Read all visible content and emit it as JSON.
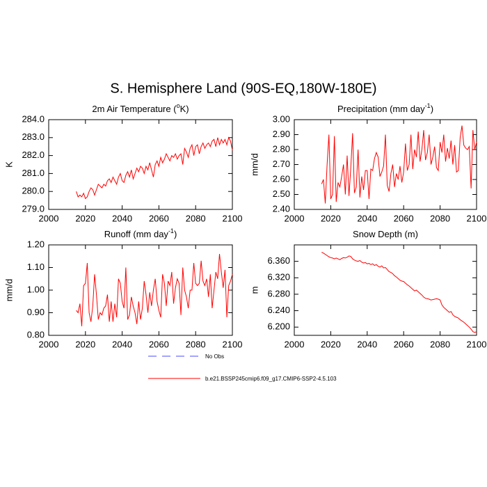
{
  "title": "S. Hemisphere Land (90S-EQ,180W-180E)",
  "legend": [
    {
      "name": "No Obs",
      "color": "#4a4aff",
      "dashed": true
    },
    {
      "name": "b.e21.BSSP245cmip6.f09_g17.CMIP6-SSP2-4.5.103",
      "color": "#ff0000",
      "dashed": false
    }
  ],
  "chart_data": [
    {
      "type": "line",
      "title": "2m Air Temperature (",
      "title_sup": "o",
      "title_end": "K)",
      "ylabel": "K",
      "color": "#ff0000",
      "xlim": [
        2000,
        2100
      ],
      "xticks": [
        2000,
        2020,
        2040,
        2060,
        2080,
        2100
      ],
      "ylim": [
        279,
        284
      ],
      "yticks": [
        {
          "value": 279,
          "label": "279.0"
        },
        {
          "value": 280,
          "label": "280.0"
        },
        {
          "value": 281,
          "label": "281.0"
        },
        {
          "value": 282,
          "label": "282.0"
        },
        {
          "value": 283,
          "label": "283.0"
        },
        {
          "value": 284,
          "label": "284.0"
        }
      ],
      "x": [
        2015,
        2016,
        2017,
        2018,
        2019,
        2020,
        2021,
        2022,
        2023,
        2024,
        2025,
        2026,
        2027,
        2028,
        2029,
        2030,
        2031,
        2032,
        2033,
        2034,
        2035,
        2036,
        2037,
        2038,
        2039,
        2040,
        2041,
        2042,
        2043,
        2044,
        2045,
        2046,
        2047,
        2048,
        2049,
        2050,
        2051,
        2052,
        2053,
        2054,
        2055,
        2056,
        2057,
        2058,
        2059,
        2060,
        2061,
        2062,
        2063,
        2064,
        2065,
        2066,
        2067,
        2068,
        2069,
        2070,
        2071,
        2072,
        2073,
        2074,
        2075,
        2076,
        2077,
        2078,
        2079,
        2080,
        2081,
        2082,
        2083,
        2084,
        2085,
        2086,
        2087,
        2088,
        2089,
        2090,
        2091,
        2092,
        2093,
        2094,
        2095,
        2096,
        2097,
        2098,
        2099,
        2100
      ],
      "values": [
        280.0,
        279.7,
        279.8,
        279.7,
        279.9,
        279.6,
        279.7,
        280.0,
        280.2,
        280.1,
        279.8,
        280.1,
        280.4,
        280.3,
        280.2,
        280.4,
        280.3,
        280.6,
        280.7,
        280.5,
        280.8,
        280.6,
        280.4,
        280.8,
        281.0,
        280.6,
        280.5,
        280.9,
        281.1,
        280.8,
        281.2,
        280.7,
        281.0,
        281.3,
        281.1,
        281.4,
        281.3,
        281.0,
        281.4,
        281.2,
        281.6,
        281.2,
        280.8,
        281.5,
        281.7,
        281.4,
        281.9,
        281.6,
        281.8,
        282.1,
        281.9,
        281.7,
        282.0,
        281.9,
        282.1,
        281.8,
        282.0,
        282.1,
        281.5,
        282.4,
        282.2,
        281.9,
        282.4,
        282.6,
        282.0,
        282.5,
        282.6,
        282.1,
        282.5,
        282.7,
        282.4,
        282.6,
        282.7,
        282.5,
        282.8,
        282.9,
        282.5,
        283.0,
        282.6,
        282.9,
        282.7,
        282.9,
        282.6,
        283.0,
        282.8,
        282.3
      ]
    },
    {
      "type": "line",
      "title": "Precipitation (mm day",
      "title_sup": "-1",
      "title_end": ")",
      "ylabel": "mm/d",
      "color": "#ff0000",
      "xlim": [
        2000,
        2100
      ],
      "xticks": [
        2000,
        2020,
        2040,
        2060,
        2080,
        2100
      ],
      "ylim": [
        2.4,
        3.0
      ],
      "yticks": [
        {
          "value": 2.4,
          "label": "2.40"
        },
        {
          "value": 2.5,
          "label": "2.50"
        },
        {
          "value": 2.6,
          "label": "2.60"
        },
        {
          "value": 2.7,
          "label": "2.70"
        },
        {
          "value": 2.8,
          "label": "2.80"
        },
        {
          "value": 2.9,
          "label": "2.90"
        },
        {
          "value": 3.0,
          "label": "3.00"
        }
      ],
      "x": [
        2015,
        2016,
        2017,
        2018,
        2019,
        2020,
        2021,
        2022,
        2023,
        2024,
        2025,
        2026,
        2027,
        2028,
        2029,
        2030,
        2031,
        2032,
        2033,
        2034,
        2035,
        2036,
        2037,
        2038,
        2039,
        2040,
        2041,
        2042,
        2043,
        2044,
        2045,
        2046,
        2047,
        2048,
        2049,
        2050,
        2051,
        2052,
        2053,
        2054,
        2055,
        2056,
        2057,
        2058,
        2059,
        2060,
        2061,
        2062,
        2063,
        2064,
        2065,
        2066,
        2067,
        2068,
        2069,
        2070,
        2071,
        2072,
        2073,
        2074,
        2075,
        2076,
        2077,
        2078,
        2079,
        2080,
        2081,
        2082,
        2083,
        2084,
        2085,
        2086,
        2087,
        2088,
        2089,
        2090,
        2091,
        2092,
        2093,
        2094,
        2095,
        2096,
        2097,
        2098,
        2099,
        2100
      ],
      "values": [
        2.57,
        2.6,
        2.44,
        2.7,
        2.9,
        2.47,
        2.5,
        2.89,
        2.45,
        2.58,
        2.55,
        2.62,
        2.7,
        2.5,
        2.76,
        2.49,
        2.68,
        2.91,
        2.51,
        2.55,
        2.8,
        2.48,
        2.62,
        2.53,
        2.66,
        2.66,
        2.47,
        2.67,
        2.66,
        2.74,
        2.78,
        2.75,
        2.62,
        2.65,
        2.69,
        2.9,
        2.56,
        2.52,
        2.64,
        2.7,
        2.55,
        2.64,
        2.6,
        2.69,
        2.58,
        2.65,
        2.84,
        2.66,
        2.7,
        2.9,
        2.67,
        2.8,
        2.75,
        2.92,
        2.72,
        2.8,
        2.93,
        2.73,
        2.78,
        2.9,
        2.7,
        2.75,
        2.82,
        2.68,
        2.66,
        2.85,
        2.78,
        2.9,
        2.72,
        2.81,
        2.74,
        2.86,
        2.7,
        2.83,
        2.65,
        2.66,
        2.88,
        2.96,
        2.83,
        2.81,
        2.8,
        2.82,
        2.54,
        2.93,
        2.8,
        2.85
      ]
    },
    {
      "type": "line",
      "title": "Runoff (mm day",
      "title_sup": "-1",
      "title_end": ")",
      "ylabel": "mm/d",
      "color": "#ff0000",
      "xlim": [
        2000,
        2100
      ],
      "xticks": [
        2000,
        2020,
        2040,
        2060,
        2080,
        2100
      ],
      "ylim": [
        0.8,
        1.2
      ],
      "yticks": [
        {
          "value": 0.8,
          "label": "0.80"
        },
        {
          "value": 0.9,
          "label": "0.90"
        },
        {
          "value": 1.0,
          "label": "1.00"
        },
        {
          "value": 1.1,
          "label": "1.10"
        },
        {
          "value": 1.2,
          "label": "1.20"
        }
      ],
      "x": [
        2015,
        2016,
        2017,
        2018,
        2019,
        2020,
        2021,
        2022,
        2023,
        2024,
        2025,
        2026,
        2027,
        2028,
        2029,
        2030,
        2031,
        2032,
        2033,
        2034,
        2035,
        2036,
        2037,
        2038,
        2039,
        2040,
        2041,
        2042,
        2043,
        2044,
        2045,
        2046,
        2047,
        2048,
        2049,
        2050,
        2051,
        2052,
        2053,
        2054,
        2055,
        2056,
        2057,
        2058,
        2059,
        2060,
        2061,
        2062,
        2063,
        2064,
        2065,
        2066,
        2067,
        2068,
        2069,
        2070,
        2071,
        2072,
        2073,
        2074,
        2075,
        2076,
        2077,
        2078,
        2079,
        2080,
        2081,
        2082,
        2083,
        2084,
        2085,
        2086,
        2087,
        2088,
        2089,
        2090,
        2091,
        2092,
        2093,
        2094,
        2095,
        2096,
        2097,
        2098,
        2099,
        2100
      ],
      "values": [
        0.91,
        0.9,
        0.94,
        0.84,
        1.02,
        1.03,
        1.12,
        0.9,
        0.86,
        0.93,
        1.07,
        0.98,
        0.87,
        0.9,
        0.89,
        0.92,
        0.93,
        0.98,
        0.86,
        0.95,
        0.86,
        0.94,
        0.88,
        1.05,
        1.03,
        0.95,
        0.92,
        1.1,
        0.87,
        0.89,
        0.97,
        0.93,
        0.9,
        0.85,
        0.95,
        0.87,
        0.92,
        1.04,
        0.98,
        0.9,
        0.99,
        0.93,
        1.0,
        1.05,
        0.95,
        0.91,
        0.88,
        1.07,
        1.03,
        0.93,
        1.04,
        1.02,
        1.08,
        0.94,
        1.01,
        1.05,
        1.03,
        0.89,
        1.1,
        1.0,
        0.97,
        0.92,
        1.0,
        1.0,
        1.12,
        1.03,
        1.02,
        1.03,
        1.13,
        1.04,
        1.02,
        1.05,
        0.97,
        1.07,
        0.92,
        1.0,
        1.08,
        1.05,
        1.16,
        1.08,
        1.01,
        1.09,
        0.88,
        1.02,
        1.04,
        1.07
      ]
    },
    {
      "type": "line",
      "title": "Snow Depth (m)",
      "ylabel": "m",
      "color": "#ff0000",
      "xlim": [
        2000,
        2100
      ],
      "xticks": [
        2000,
        2020,
        2040,
        2060,
        2080,
        2100
      ],
      "ylim": [
        6.18,
        6.4
      ],
      "yticks": [
        {
          "value": 6.2,
          "label": "6.200"
        },
        {
          "value": 6.24,
          "label": "6.240"
        },
        {
          "value": 6.28,
          "label": "6.280"
        },
        {
          "value": 6.32,
          "label": "6.320"
        },
        {
          "value": 6.36,
          "label": "6.360"
        }
      ],
      "x": [
        2015,
        2016,
        2017,
        2018,
        2019,
        2020,
        2021,
        2022,
        2023,
        2024,
        2025,
        2026,
        2027,
        2028,
        2029,
        2030,
        2031,
        2032,
        2033,
        2034,
        2035,
        2036,
        2037,
        2038,
        2039,
        2040,
        2041,
        2042,
        2043,
        2044,
        2045,
        2046,
        2047,
        2048,
        2049,
        2050,
        2051,
        2052,
        2053,
        2054,
        2055,
        2056,
        2057,
        2058,
        2059,
        2060,
        2061,
        2062,
        2063,
        2064,
        2065,
        2066,
        2067,
        2068,
        2069,
        2070,
        2071,
        2072,
        2073,
        2074,
        2075,
        2076,
        2077,
        2078,
        2079,
        2080,
        2081,
        2082,
        2083,
        2084,
        2085,
        2086,
        2087,
        2088,
        2089,
        2090,
        2091,
        2092,
        2093,
        2094,
        2095,
        2096,
        2097,
        2098,
        2099,
        2100
      ],
      "values": [
        6.382,
        6.38,
        6.377,
        6.374,
        6.371,
        6.369,
        6.368,
        6.366,
        6.368,
        6.366,
        6.364,
        6.367,
        6.369,
        6.368,
        6.37,
        6.373,
        6.372,
        6.366,
        6.363,
        6.361,
        6.36,
        6.362,
        6.358,
        6.356,
        6.357,
        6.354,
        6.355,
        6.352,
        6.354,
        6.35,
        6.352,
        6.348,
        6.346,
        6.349,
        6.344,
        6.345,
        6.34,
        6.335,
        6.333,
        6.33,
        6.325,
        6.322,
        6.318,
        6.314,
        6.312,
        6.311,
        6.307,
        6.303,
        6.3,
        6.296,
        6.292,
        6.288,
        6.29,
        6.286,
        6.282,
        6.278,
        6.273,
        6.27,
        6.269,
        6.268,
        6.266,
        6.267,
        6.268,
        6.269,
        6.268,
        6.266,
        6.254,
        6.248,
        6.244,
        6.24,
        6.236,
        6.238,
        6.23,
        6.226,
        6.224,
        6.222,
        6.218,
        6.215,
        6.212,
        6.208,
        6.204,
        6.2,
        6.195,
        6.189,
        6.187,
        6.189
      ]
    }
  ]
}
